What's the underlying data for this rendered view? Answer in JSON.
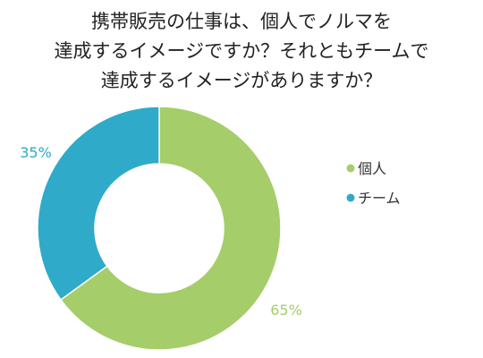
{
  "chart_data": {
    "type": "pie",
    "donut": true,
    "title_lines": [
      "携帯販売の仕事は、個人でノルマを",
      "達成するイメージですか？それともチームで",
      "達成するイメージがありますか？"
    ],
    "categories": [
      "個人",
      "チーム"
    ],
    "values": [
      65,
      35
    ],
    "data_labels": [
      "65%",
      "35%"
    ],
    "colors": [
      "#a5cd6a",
      "#2faac8"
    ],
    "legend_position": "right",
    "start_angle": "top, clockwise"
  }
}
